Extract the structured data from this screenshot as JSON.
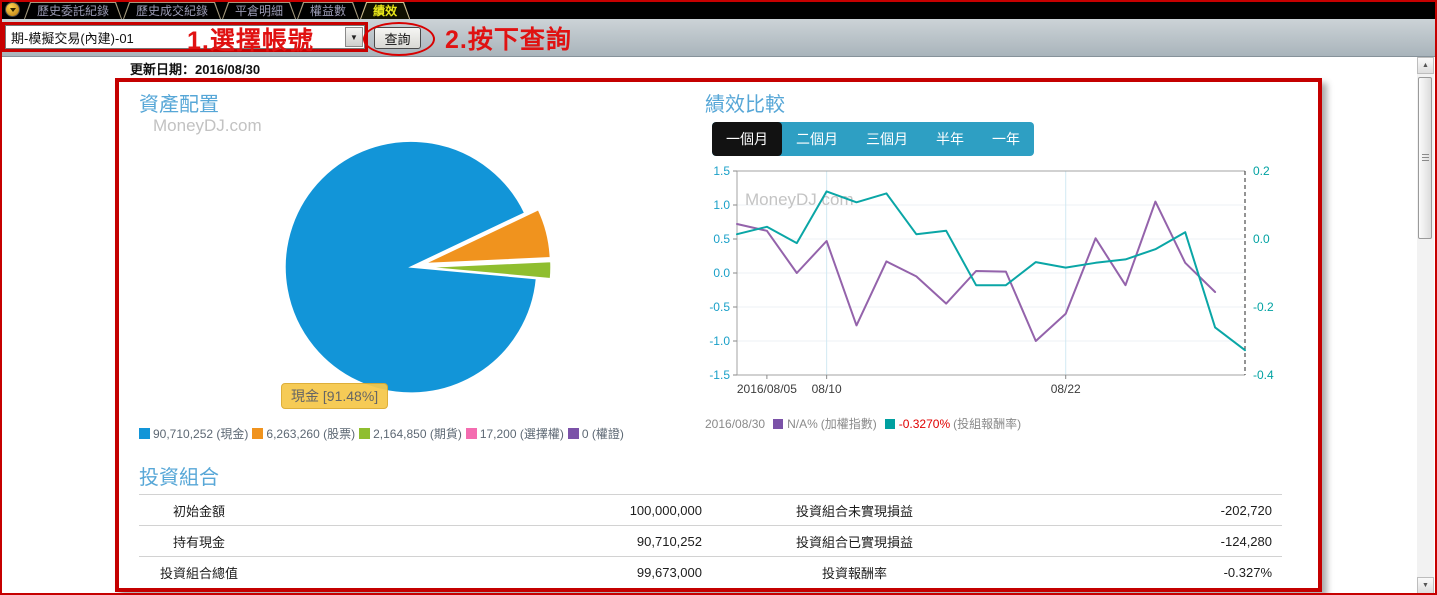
{
  "window_tabs": [
    {
      "label": "歷史委託紀錄",
      "active": false
    },
    {
      "label": "歷史成交紀錄",
      "active": false
    },
    {
      "label": "平倉明細",
      "active": false
    },
    {
      "label": "權益數",
      "active": false
    },
    {
      "label": "績效",
      "active": true
    }
  ],
  "icons": {
    "tab_dropdown": "▼",
    "combo_arrow": "▼",
    "scroll_up": "▲",
    "scroll_down": "▼"
  },
  "toolbar": {
    "account_value": "期-模擬交易(內建)-01",
    "step1_annotation": "1.選擇帳號",
    "query_label": "查詢",
    "step2_annotation": "2.按下查詢"
  },
  "update": {
    "label": "更新日期：",
    "value": "2016/08/30"
  },
  "colors": {
    "annotation_red": "#c80000",
    "section_title_blue": "#57a7d7",
    "period_tab_teal": "#2e9fc3",
    "tooltip_yellow": "#f6c84a"
  },
  "asset_allocation": {
    "title": "資產配置",
    "watermark": "MoneyDJ.com",
    "tooltip": "現金 [91.48%]",
    "legend": [
      {
        "value": "90,710,252",
        "label": "(現金)",
        "color": "#1295d8"
      },
      {
        "value": "6,263,260",
        "label": "(股票)",
        "color": "#f0931e"
      },
      {
        "value": "2,164,850",
        "label": "(期貨)",
        "color": "#8fbe2f"
      },
      {
        "value": "17,200",
        "label": "(選擇權)",
        "color": "#f46cb0"
      },
      {
        "value": "0",
        "label": "(權證)",
        "color": "#7b52a8"
      }
    ]
  },
  "performance": {
    "title": "績效比較",
    "watermark": "MoneyDJ.com",
    "period_tabs": [
      {
        "label": "一個月",
        "active": true
      },
      {
        "label": "二個月",
        "active": false
      },
      {
        "label": "三個月",
        "active": false
      },
      {
        "label": "半年",
        "active": false
      },
      {
        "label": "一年",
        "active": false
      }
    ],
    "legend": {
      "date": "2016/08/30",
      "items": [
        {
          "swatch": "#7b52a8",
          "value": "N/A%",
          "value_color": "#8a8a8a",
          "label": "(加權指數)"
        },
        {
          "swatch": "#00a0a0",
          "value": "-0.3270%",
          "value_color": "#e00000",
          "label": "(投組報酬率)"
        }
      ]
    }
  },
  "portfolio": {
    "title": "投資組合",
    "rows": [
      {
        "label1": "初始金額",
        "value1": "100,000,000",
        "label2": "投資組合未實現損益",
        "value2": "-202,720"
      },
      {
        "label1": "持有現金",
        "value1": "90,710,252",
        "label2": "投資組合已實現損益",
        "value2": "-124,280"
      },
      {
        "label1": "投資組合總值",
        "value1": "99,673,000",
        "label2": "投資報酬率",
        "value2": "-0.327%"
      }
    ]
  },
  "chart_data": [
    {
      "type": "pie",
      "title": "資產配置",
      "labels": [
        "現金",
        "股票",
        "期貨",
        "選擇權",
        "權證"
      ],
      "values": [
        90710252,
        6263260,
        2164850,
        17200,
        0
      ],
      "percents": [
        91.48,
        6.32,
        2.18,
        0.02,
        0
      ],
      "colors": [
        "#1295d8",
        "#f0931e",
        "#8fbe2f",
        "#f46cb0",
        "#7b52a8"
      ],
      "exploded_labels": [
        "股票",
        "期貨",
        "選擇權",
        "權證"
      ],
      "tooltip": "現金 [91.48%]"
    },
    {
      "type": "line",
      "title": "績效比較 (一個月)",
      "x": [
        0,
        1,
        2,
        3,
        4,
        5,
        6,
        7,
        8,
        9,
        10,
        11,
        12,
        13,
        14,
        15,
        16,
        17
      ],
      "x_ticks": [
        {
          "i": 1,
          "label": "2016/08/05"
        },
        {
          "i": 3,
          "label": "08/10"
        },
        {
          "i": 11,
          "label": "08/22"
        }
      ],
      "grid_x_at": [
        3,
        11
      ],
      "left_axis": {
        "label_color": "#1aa0c8",
        "ticks": [
          1.5,
          1.0,
          0.5,
          0.0,
          -0.5,
          -1.0,
          -1.5
        ],
        "range": [
          -1.5,
          1.5
        ]
      },
      "right_axis": {
        "label_color": "#00a2a2",
        "ticks": [
          0.2,
          0.0,
          -0.2,
          -0.4
        ],
        "range": [
          -0.4,
          0.2
        ]
      },
      "series": [
        {
          "name": "加權指數",
          "axis": "left",
          "color": "#9463ab",
          "values": [
            0.72,
            0.62,
            0.0,
            0.47,
            -0.77,
            0.17,
            -0.05,
            -0.45,
            0.03,
            0.02,
            -1.0,
            -0.6,
            0.51,
            -0.18,
            1.05,
            0.15,
            -0.28
          ]
        },
        {
          "name": "投組報酬率",
          "axis": "right",
          "color": "#0aa6a6",
          "values": [
            0.014,
            0.036,
            -0.012,
            0.14,
            0.108,
            0.134,
            0.014,
            0.024,
            -0.136,
            -0.136,
            -0.068,
            -0.084,
            -0.07,
            -0.06,
            -0.03,
            0.02,
            -0.26,
            -0.327
          ]
        }
      ]
    }
  ]
}
